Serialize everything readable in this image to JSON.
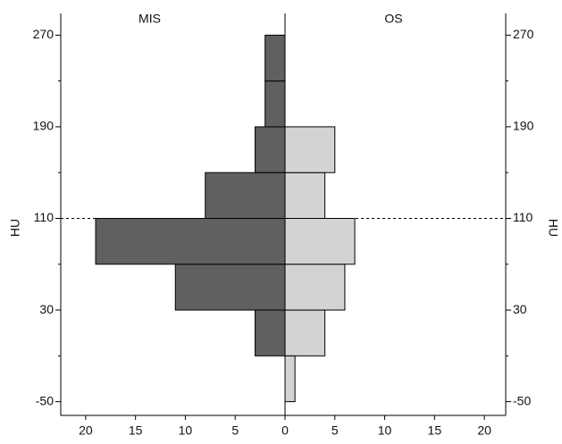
{
  "chart_data": {
    "type": "back-to-back-histogram",
    "y_label": "HU",
    "bins": [
      -50,
      -10,
      30,
      70,
      110,
      150,
      190,
      230,
      270
    ],
    "series": [
      {
        "name": "MIS",
        "color": "#606060",
        "side": "left",
        "values": [
          0,
          3,
          11,
          19,
          8,
          3,
          2,
          2
        ]
      },
      {
        "name": "OS",
        "color": "#d3d3d3",
        "side": "right",
        "values": [
          1,
          4,
          6,
          7,
          4,
          5,
          0,
          0
        ]
      }
    ],
    "ylim": [
      -62,
      289
    ],
    "yticks": [
      -50,
      30,
      110,
      190,
      270
    ],
    "yminorticks": [
      -10,
      70,
      150,
      230
    ],
    "xlim": [
      0,
      22.5
    ],
    "xticks": [
      0,
      5,
      10,
      15,
      20
    ],
    "reference_line": 110
  }
}
